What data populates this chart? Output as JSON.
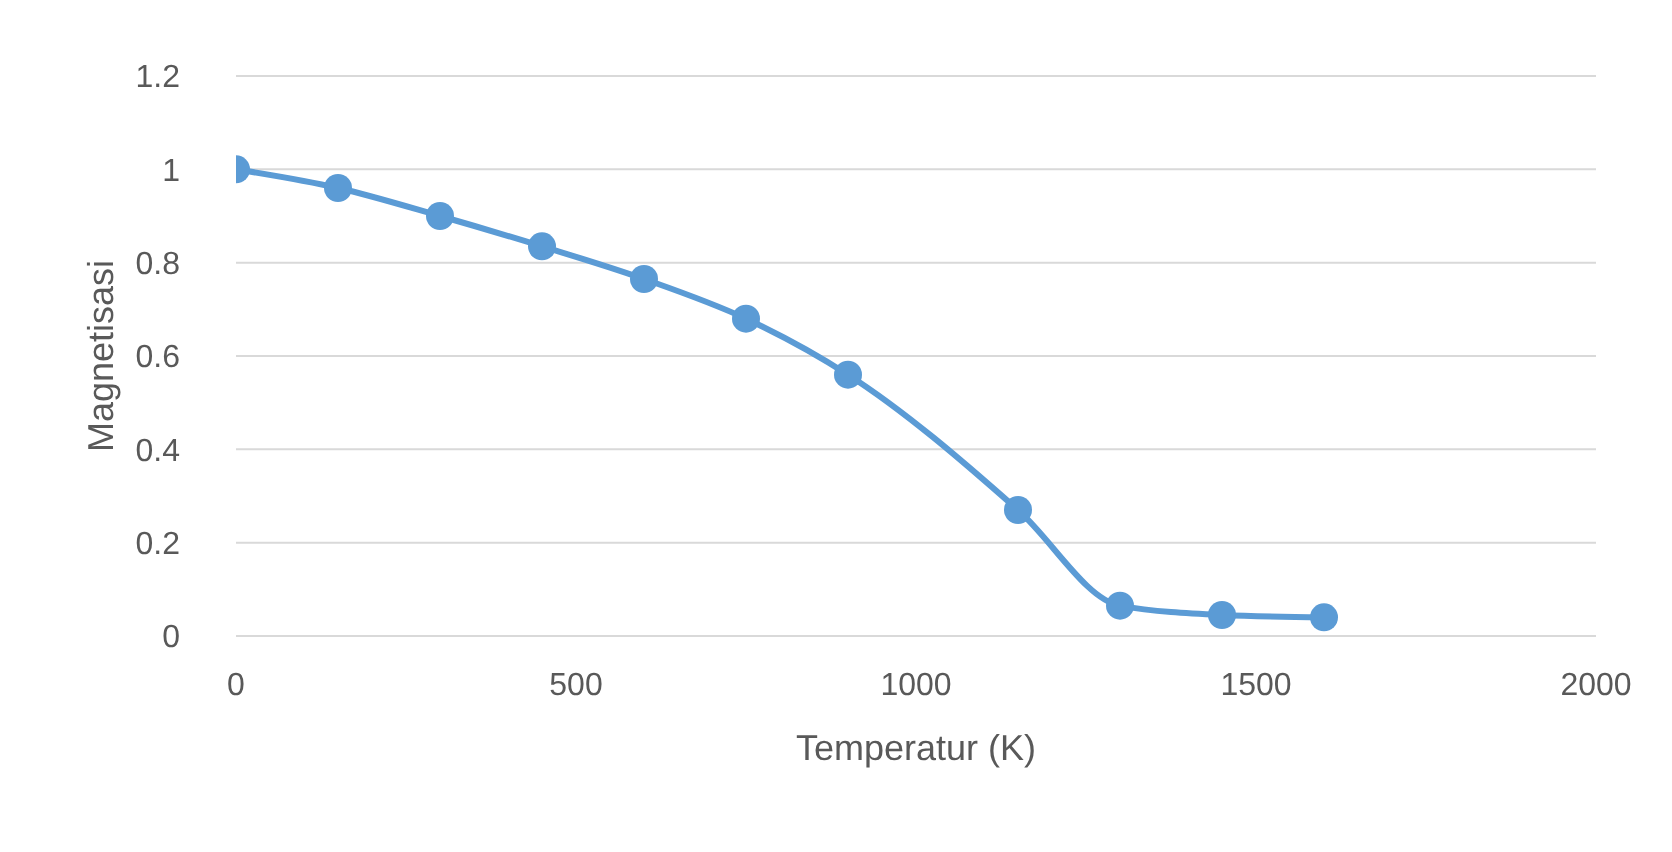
{
  "chart_data": {
    "type": "line",
    "xlabel": "Temperatur (K)",
    "ylabel": "Magnetisasi",
    "x": [
      0,
      150,
      300,
      450,
      600,
      750,
      900,
      1150,
      1300,
      1450,
      1600
    ],
    "series": [
      {
        "color": "#5b9bd5",
        "values": [
          1.0,
          0.96,
          0.9,
          0.835,
          0.765,
          0.68,
          0.56,
          0.27,
          0.065,
          0.045,
          0.04
        ]
      }
    ],
    "xlim": [
      0,
      2000
    ],
    "xticks": [
      0,
      500,
      1000,
      1500,
      2000
    ],
    "ylim": [
      0,
      1.2
    ],
    "yticks": [
      0,
      0.2,
      0.4,
      0.6,
      0.8,
      1,
      1.2
    ],
    "grid": "y",
    "marker": "circle",
    "line_style": "solid"
  }
}
